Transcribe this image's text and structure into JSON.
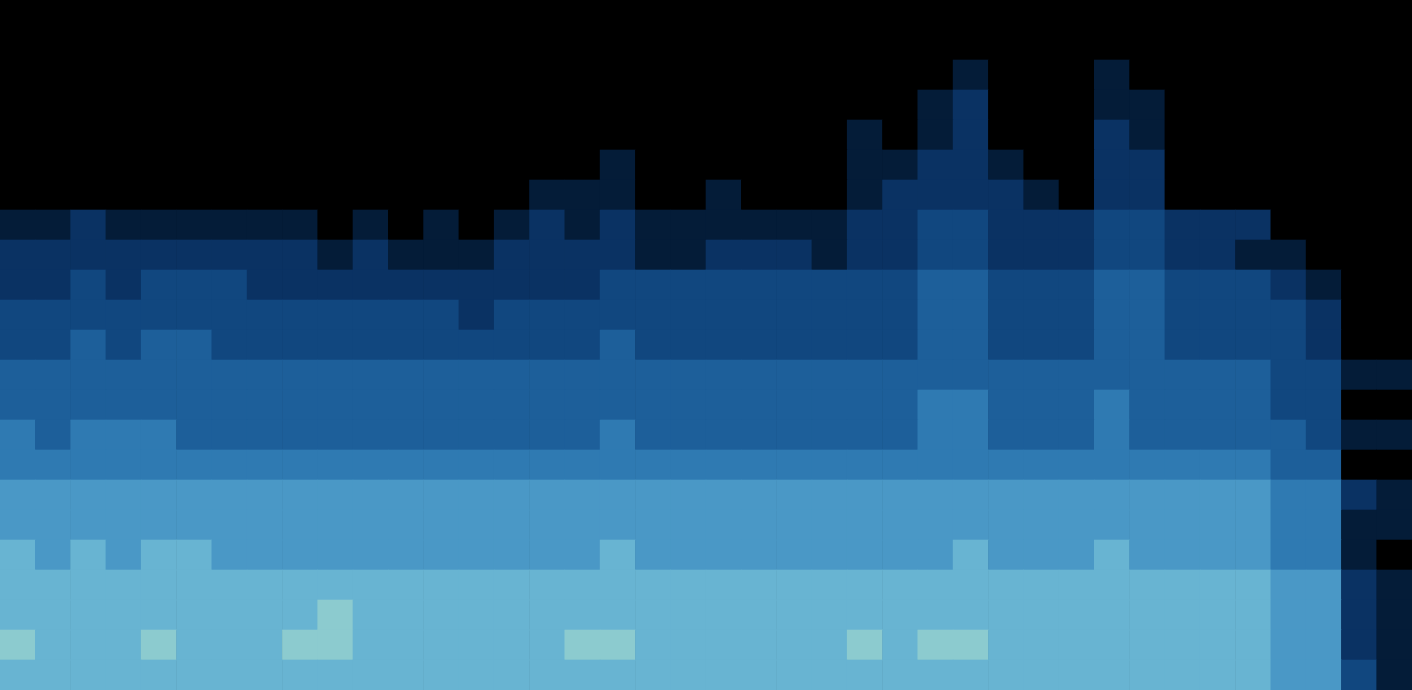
{
  "chart_data": {
    "type": "heatmap",
    "tick_labels": false,
    "colors": [
      "#000000",
      "#041c38",
      "#0a3263",
      "#11477f",
      "#1d5f9a",
      "#2f7ab2",
      "#4a98c6",
      "#68b4d2",
      "#8ccbcf"
    ],
    "cells": [
      [
        0,
        0,
        0,
        0,
        0,
        0,
        0,
        0,
        0,
        0,
        0,
        0,
        0,
        0,
        0,
        0,
        0,
        0,
        0,
        0,
        0,
        0,
        0,
        0,
        0,
        0,
        0,
        0,
        0,
        0,
        0,
        0,
        0,
        0,
        0,
        0,
        0,
        0,
        0,
        0
      ],
      [
        0,
        0,
        0,
        0,
        0,
        0,
        0,
        0,
        0,
        0,
        0,
        0,
        0,
        0,
        0,
        0,
        0,
        0,
        0,
        0,
        0,
        0,
        0,
        0,
        0,
        0,
        0,
        0,
        0,
        0,
        0,
        0,
        0,
        0,
        0,
        0,
        0,
        0,
        0,
        0
      ],
      [
        0,
        0,
        0,
        0,
        0,
        0,
        0,
        0,
        0,
        0,
        0,
        0,
        0,
        0,
        0,
        0,
        0,
        0,
        0,
        0,
        0,
        0,
        0,
        0,
        0,
        0,
        0,
        1,
        0,
        0,
        0,
        1,
        0,
        0,
        0,
        0,
        0,
        0,
        0,
        0
      ],
      [
        0,
        0,
        0,
        0,
        0,
        0,
        0,
        0,
        0,
        0,
        0,
        0,
        0,
        0,
        0,
        0,
        0,
        0,
        0,
        0,
        0,
        0,
        0,
        0,
        0,
        0,
        1,
        2,
        0,
        0,
        0,
        1,
        1,
        0,
        0,
        0,
        0,
        0,
        0,
        0
      ],
      [
        0,
        0,
        0,
        0,
        0,
        0,
        0,
        0,
        0,
        0,
        0,
        0,
        0,
        0,
        0,
        0,
        0,
        0,
        0,
        0,
        0,
        0,
        0,
        0,
        1,
        0,
        1,
        2,
        0,
        0,
        0,
        2,
        1,
        0,
        0,
        0,
        0,
        0,
        0,
        0
      ],
      [
        0,
        0,
        0,
        0,
        0,
        0,
        0,
        0,
        0,
        0,
        0,
        0,
        0,
        0,
        0,
        0,
        0,
        1,
        0,
        0,
        0,
        0,
        0,
        0,
        1,
        1,
        2,
        2,
        1,
        0,
        0,
        2,
        2,
        0,
        0,
        0,
        0,
        0,
        0,
        0
      ],
      [
        0,
        0,
        0,
        0,
        0,
        0,
        0,
        0,
        0,
        0,
        0,
        0,
        0,
        0,
        0,
        1,
        1,
        1,
        0,
        0,
        1,
        0,
        0,
        0,
        1,
        2,
        2,
        2,
        2,
        1,
        0,
        2,
        2,
        0,
        0,
        0,
        0,
        0,
        0,
        0
      ],
      [
        1,
        1,
        2,
        1,
        1,
        1,
        1,
        1,
        1,
        0,
        1,
        0,
        1,
        0,
        1,
        2,
        1,
        2,
        1,
        1,
        1,
        1,
        1,
        1,
        2,
        2,
        3,
        3,
        2,
        2,
        2,
        3,
        3,
        2,
        2,
        2,
        0,
        0,
        0,
        0
      ],
      [
        2,
        2,
        2,
        2,
        2,
        2,
        2,
        2,
        2,
        1,
        2,
        1,
        1,
        1,
        2,
        2,
        2,
        2,
        1,
        1,
        2,
        2,
        2,
        1,
        2,
        2,
        3,
        3,
        2,
        2,
        2,
        3,
        3,
        2,
        2,
        1,
        1,
        0,
        0,
        0
      ],
      [
        2,
        2,
        3,
        2,
        3,
        3,
        3,
        2,
        2,
        2,
        2,
        2,
        2,
        2,
        2,
        2,
        2,
        3,
        3,
        3,
        3,
        3,
        3,
        3,
        3,
        3,
        4,
        4,
        3,
        3,
        3,
        4,
        4,
        3,
        3,
        3,
        2,
        1,
        0,
        0
      ],
      [
        3,
        3,
        3,
        3,
        3,
        3,
        3,
        3,
        3,
        3,
        3,
        3,
        3,
        2,
        3,
        3,
        3,
        3,
        3,
        3,
        3,
        3,
        3,
        3,
        3,
        3,
        4,
        4,
        3,
        3,
        3,
        4,
        4,
        3,
        3,
        3,
        3,
        2,
        0,
        0
      ],
      [
        3,
        3,
        4,
        3,
        4,
        4,
        3,
        3,
        3,
        3,
        3,
        3,
        3,
        3,
        3,
        3,
        3,
        4,
        3,
        3,
        3,
        3,
        3,
        3,
        3,
        3,
        4,
        4,
        3,
        3,
        3,
        4,
        4,
        3,
        3,
        3,
        3,
        2,
        0,
        0
      ],
      [
        4,
        4,
        4,
        4,
        4,
        4,
        4,
        4,
        4,
        4,
        4,
        4,
        4,
        4,
        4,
        4,
        4,
        4,
        4,
        4,
        4,
        4,
        4,
        4,
        4,
        4,
        4,
        4,
        4,
        4,
        4,
        4,
        4,
        4,
        4,
        4,
        3,
        3,
        1,
        1
      ],
      [
        4,
        4,
        4,
        4,
        4,
        4,
        4,
        4,
        4,
        4,
        4,
        4,
        4,
        4,
        4,
        4,
        4,
        4,
        4,
        4,
        4,
        4,
        4,
        4,
        4,
        4,
        5,
        5,
        4,
        4,
        4,
        5,
        4,
        4,
        4,
        4,
        3,
        3,
        0,
        0
      ],
      [
        5,
        4,
        5,
        5,
        5,
        4,
        4,
        4,
        4,
        4,
        4,
        4,
        4,
        4,
        4,
        4,
        4,
        5,
        4,
        4,
        4,
        4,
        4,
        4,
        4,
        4,
        5,
        5,
        4,
        4,
        4,
        5,
        4,
        4,
        4,
        4,
        4,
        3,
        1,
        1
      ],
      [
        5,
        5,
        5,
        5,
        5,
        5,
        5,
        5,
        5,
        5,
        5,
        5,
        5,
        5,
        5,
        5,
        5,
        5,
        5,
        5,
        5,
        5,
        5,
        5,
        5,
        5,
        5,
        5,
        5,
        5,
        5,
        5,
        5,
        5,
        5,
        5,
        4,
        4,
        0,
        0
      ],
      [
        6,
        6,
        6,
        6,
        6,
        6,
        6,
        6,
        6,
        6,
        6,
        6,
        6,
        6,
        6,
        6,
        6,
        6,
        6,
        6,
        6,
        6,
        6,
        6,
        6,
        6,
        6,
        6,
        6,
        6,
        6,
        6,
        6,
        6,
        6,
        6,
        5,
        5,
        2,
        1
      ],
      [
        6,
        6,
        6,
        6,
        6,
        6,
        6,
        6,
        6,
        6,
        6,
        6,
        6,
        6,
        6,
        6,
        6,
        6,
        6,
        6,
        6,
        6,
        6,
        6,
        6,
        6,
        6,
        6,
        6,
        6,
        6,
        6,
        6,
        6,
        6,
        6,
        5,
        5,
        1,
        1
      ],
      [
        7,
        6,
        7,
        6,
        7,
        7,
        6,
        6,
        6,
        6,
        6,
        6,
        6,
        6,
        6,
        6,
        6,
        7,
        6,
        6,
        6,
        6,
        6,
        6,
        6,
        6,
        6,
        7,
        6,
        6,
        6,
        7,
        6,
        6,
        6,
        6,
        5,
        5,
        1,
        0
      ],
      [
        7,
        7,
        7,
        7,
        7,
        7,
        7,
        7,
        7,
        7,
        7,
        7,
        7,
        7,
        7,
        7,
        7,
        7,
        7,
        7,
        7,
        7,
        7,
        7,
        7,
        7,
        7,
        7,
        7,
        7,
        7,
        7,
        7,
        7,
        7,
        7,
        6,
        6,
        2,
        1
      ],
      [
        7,
        7,
        7,
        7,
        7,
        7,
        7,
        7,
        7,
        8,
        7,
        7,
        7,
        7,
        7,
        7,
        7,
        7,
        7,
        7,
        7,
        7,
        7,
        7,
        7,
        7,
        7,
        7,
        7,
        7,
        7,
        7,
        7,
        7,
        7,
        7,
        6,
        6,
        2,
        1
      ],
      [
        8,
        7,
        7,
        7,
        8,
        7,
        7,
        7,
        8,
        8,
        7,
        7,
        7,
        7,
        7,
        7,
        8,
        8,
        7,
        7,
        7,
        7,
        7,
        7,
        8,
        7,
        8,
        8,
        7,
        7,
        7,
        7,
        7,
        7,
        7,
        7,
        6,
        6,
        2,
        1
      ],
      [
        7,
        7,
        7,
        7,
        7,
        7,
        7,
        7,
        7,
        7,
        7,
        7,
        7,
        7,
        7,
        7,
        7,
        7,
        7,
        7,
        7,
        7,
        7,
        7,
        7,
        7,
        7,
        7,
        7,
        7,
        7,
        7,
        7,
        7,
        7,
        7,
        6,
        6,
        3,
        1
      ]
    ]
  }
}
